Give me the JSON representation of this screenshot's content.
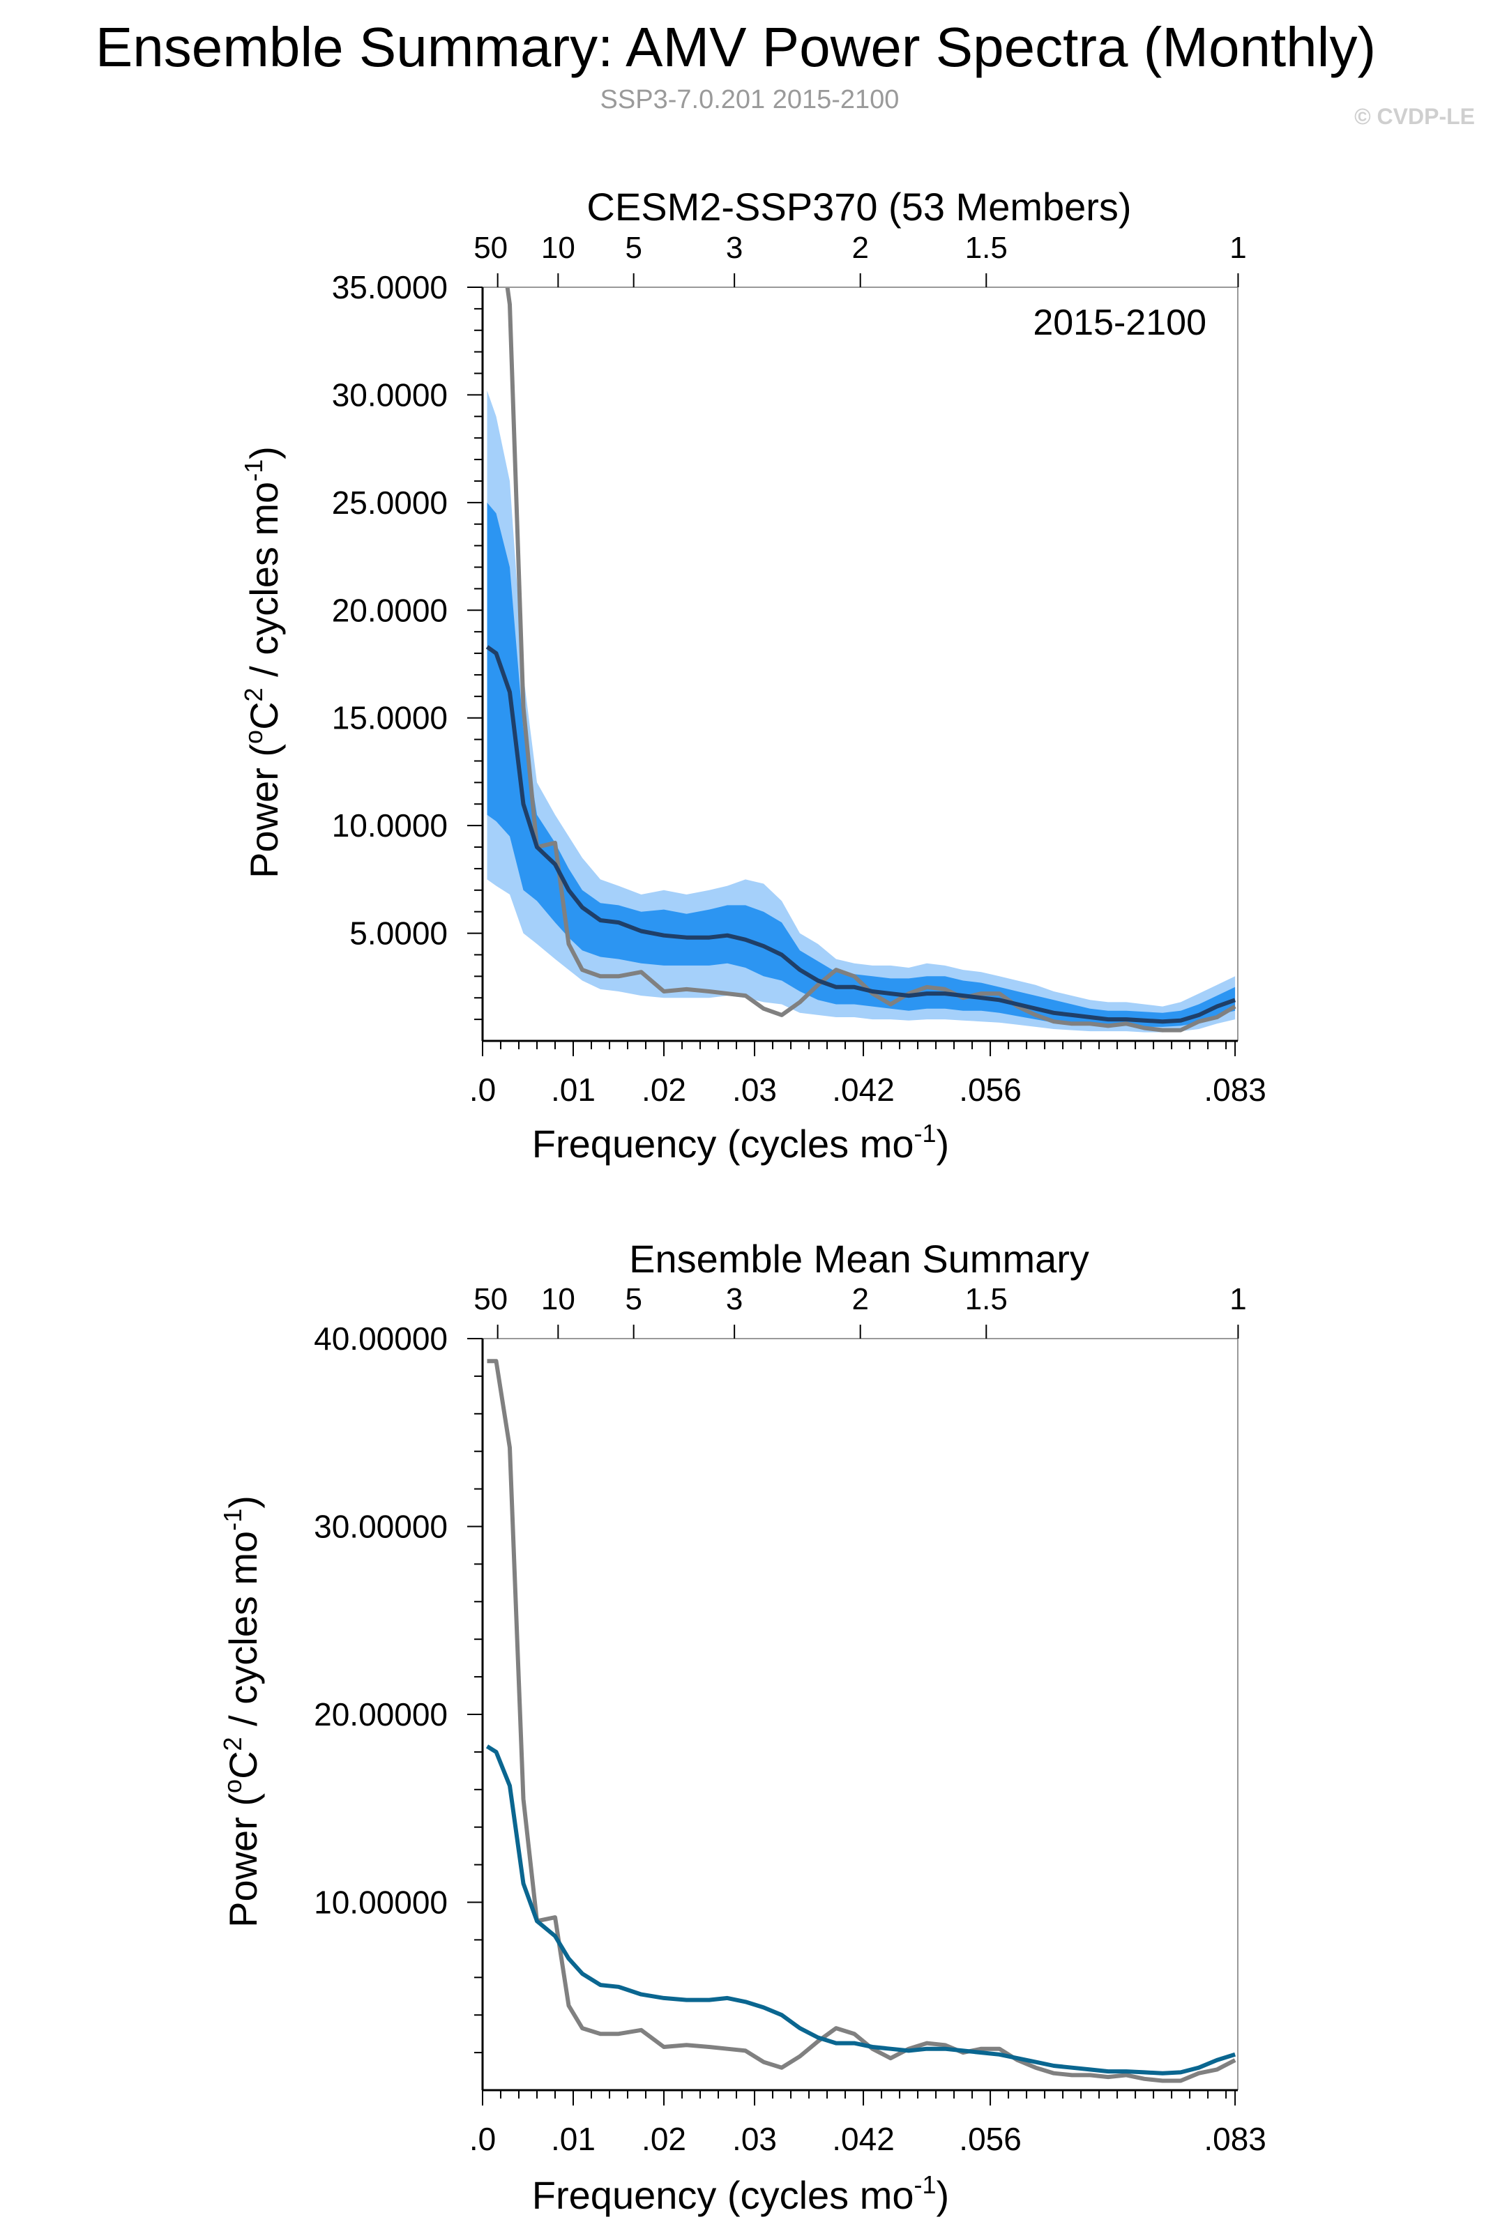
{
  "title": "Ensemble Summary: AMV Power Spectra (Monthly)",
  "subtitle": "SSP3-7.0.201 2015-2100",
  "copyright": "© CVDP-LE",
  "colors": {
    "model": "#0a6690",
    "model_dark": "#1f3f68",
    "obs": "#808080",
    "band_outer": "#a5d0fa",
    "band_inner": "#2c95f2",
    "axis": "#000000",
    "frame": "#999999"
  },
  "chart_data": [
    {
      "type": "line",
      "title": "CESM2-SSP370 (53 Members)",
      "annotation": "2015-2100",
      "xlabel": "Frequency (cycles mo⁻¹)",
      "ylabel": "Power (°C² / cycles mo⁻¹)",
      "xlim": [
        0,
        0.0833
      ],
      "ylim": [
        0,
        35
      ],
      "x_ticks": [
        0.0,
        0.01,
        0.02,
        0.03,
        0.042,
        0.056,
        0.083
      ],
      "x_tick_labels": [
        ".0",
        ".01",
        ".02",
        ".03",
        ".042",
        ".056",
        ".083"
      ],
      "y_ticks": [
        5,
        10,
        15,
        20,
        25,
        30,
        35
      ],
      "y_tick_labels": [
        "5.0000",
        "10.0000",
        "15.0000",
        "20.0000",
        "25.0000",
        "30.0000",
        "35.0000"
      ],
      "top_axis_labels": [
        "50",
        "10",
        "5",
        "3",
        "2",
        "1.5",
        "1"
      ],
      "top_axis_periods_years": [
        50,
        10,
        5,
        3,
        2,
        1.5,
        1
      ],
      "grid": false,
      "x": [
        0.0005,
        0.0015,
        0.003,
        0.0045,
        0.006,
        0.008,
        0.0095,
        0.011,
        0.013,
        0.015,
        0.0175,
        0.02,
        0.0225,
        0.025,
        0.027,
        0.029,
        0.031,
        0.033,
        0.035,
        0.037,
        0.039,
        0.041,
        0.043,
        0.045,
        0.047,
        0.049,
        0.051,
        0.053,
        0.055,
        0.057,
        0.059,
        0.061,
        0.063,
        0.065,
        0.067,
        0.069,
        0.071,
        0.073,
        0.075,
        0.077,
        0.079,
        0.081,
        0.083
      ],
      "series": [
        {
          "role": "ensemble-mean",
          "values": [
            18.3,
            18.0,
            16.2,
            11.0,
            9.0,
            8.2,
            7.0,
            6.2,
            5.6,
            5.5,
            5.1,
            4.9,
            4.8,
            4.8,
            4.9,
            4.7,
            4.4,
            4.0,
            3.3,
            2.8,
            2.5,
            2.5,
            2.3,
            2.2,
            2.1,
            2.2,
            2.2,
            2.1,
            2.0,
            1.9,
            1.7,
            1.5,
            1.3,
            1.2,
            1.1,
            1.0,
            1.0,
            0.95,
            0.9,
            0.95,
            1.2,
            1.6,
            1.9
          ]
        },
        {
          "role": "observations",
          "values": [
            null,
            38.8,
            34.2,
            15.5,
            9.0,
            9.2,
            4.5,
            3.3,
            3.0,
            3.0,
            3.2,
            2.3,
            2.4,
            2.3,
            2.2,
            2.1,
            1.5,
            1.2,
            1.8,
            2.6,
            3.3,
            3.0,
            2.2,
            1.7,
            2.2,
            2.5,
            2.4,
            2.0,
            2.2,
            2.2,
            1.6,
            1.2,
            0.9,
            0.8,
            0.8,
            0.7,
            0.8,
            0.6,
            0.5,
            0.5,
            0.9,
            1.1,
            1.6
          ]
        }
      ],
      "band_outer": {
        "upper": [
          30.2,
          29.0,
          26.0,
          17.0,
          12.0,
          10.5,
          9.5,
          8.5,
          7.5,
          7.2,
          6.8,
          7.0,
          6.8,
          7.0,
          7.2,
          7.5,
          7.3,
          6.5,
          5.0,
          4.5,
          3.8,
          3.6,
          3.5,
          3.5,
          3.4,
          3.6,
          3.5,
          3.3,
          3.2,
          3.0,
          2.8,
          2.6,
          2.3,
          2.1,
          1.9,
          1.8,
          1.8,
          1.7,
          1.6,
          1.8,
          2.2,
          2.6,
          3.0
        ],
        "lower": [
          7.5,
          7.2,
          6.8,
          5.0,
          4.5,
          3.8,
          3.3,
          2.8,
          2.4,
          2.3,
          2.1,
          2.0,
          2.0,
          2.0,
          2.1,
          2.0,
          1.8,
          1.7,
          1.3,
          1.2,
          1.1,
          1.1,
          1.0,
          1.0,
          0.95,
          1.0,
          1.0,
          0.95,
          0.9,
          0.85,
          0.75,
          0.65,
          0.55,
          0.5,
          0.45,
          0.45,
          0.45,
          0.4,
          0.4,
          0.45,
          0.55,
          0.8,
          1.0
        ]
      },
      "band_inner": {
        "upper": [
          25.0,
          24.5,
          22.0,
          14.5,
          10.5,
          9.2,
          8.0,
          7.0,
          6.4,
          6.3,
          6.0,
          6.1,
          5.9,
          6.1,
          6.3,
          6.3,
          6.0,
          5.5,
          4.2,
          3.7,
          3.2,
          3.1,
          3.0,
          2.9,
          2.9,
          3.0,
          3.0,
          2.8,
          2.7,
          2.5,
          2.3,
          2.1,
          1.9,
          1.7,
          1.5,
          1.4,
          1.4,
          1.35,
          1.3,
          1.4,
          1.7,
          2.1,
          2.5
        ],
        "lower": [
          10.5,
          10.2,
          9.5,
          7.0,
          6.5,
          5.5,
          4.8,
          4.2,
          3.9,
          3.8,
          3.6,
          3.5,
          3.5,
          3.5,
          3.6,
          3.4,
          3.0,
          2.8,
          2.3,
          1.9,
          1.7,
          1.7,
          1.6,
          1.5,
          1.4,
          1.5,
          1.5,
          1.4,
          1.4,
          1.3,
          1.15,
          1.0,
          0.85,
          0.8,
          0.75,
          0.7,
          0.7,
          0.65,
          0.65,
          0.7,
          0.85,
          1.2,
          1.4
        ]
      }
    },
    {
      "type": "line",
      "title": "Ensemble Mean Summary",
      "xlabel": "Frequency (cycles mo⁻¹)",
      "ylabel": "Power (°C² / cycles mo⁻¹)",
      "xlim": [
        0,
        0.0833
      ],
      "ylim": [
        0,
        40
      ],
      "x_ticks": [
        0.0,
        0.01,
        0.02,
        0.03,
        0.042,
        0.056,
        0.083
      ],
      "x_tick_labels": [
        ".0",
        ".01",
        ".02",
        ".03",
        ".042",
        ".056",
        ".083"
      ],
      "y_ticks": [
        10,
        20,
        30,
        40
      ],
      "y_tick_labels": [
        "10.00000",
        "20.00000",
        "30.00000",
        "40.00000"
      ],
      "top_axis_labels": [
        "50",
        "10",
        "5",
        "3",
        "2",
        "1.5",
        "1"
      ],
      "top_axis_periods_years": [
        50,
        10,
        5,
        3,
        2,
        1.5,
        1
      ],
      "grid": false,
      "x": [
        0.0005,
        0.0015,
        0.003,
        0.0045,
        0.006,
        0.008,
        0.0095,
        0.011,
        0.013,
        0.015,
        0.0175,
        0.02,
        0.0225,
        0.025,
        0.027,
        0.029,
        0.031,
        0.033,
        0.035,
        0.037,
        0.039,
        0.041,
        0.043,
        0.045,
        0.047,
        0.049,
        0.051,
        0.053,
        0.055,
        0.057,
        0.059,
        0.061,
        0.063,
        0.065,
        0.067,
        0.069,
        0.071,
        0.073,
        0.075,
        0.077,
        0.079,
        0.081,
        0.083
      ],
      "series": [
        {
          "role": "ensemble-mean",
          "values": [
            18.3,
            18.0,
            16.2,
            11.0,
            9.0,
            8.2,
            7.0,
            6.2,
            5.6,
            5.5,
            5.1,
            4.9,
            4.8,
            4.8,
            4.9,
            4.7,
            4.4,
            4.0,
            3.3,
            2.8,
            2.5,
            2.5,
            2.3,
            2.2,
            2.1,
            2.2,
            2.2,
            2.1,
            2.0,
            1.9,
            1.7,
            1.5,
            1.3,
            1.2,
            1.1,
            1.0,
            1.0,
            0.95,
            0.9,
            0.95,
            1.2,
            1.6,
            1.9
          ]
        },
        {
          "role": "observations",
          "values": [
            38.8,
            38.8,
            34.2,
            15.5,
            9.0,
            9.2,
            4.5,
            3.3,
            3.0,
            3.0,
            3.2,
            2.3,
            2.4,
            2.3,
            2.2,
            2.1,
            1.5,
            1.2,
            1.8,
            2.6,
            3.3,
            3.0,
            2.2,
            1.7,
            2.2,
            2.5,
            2.4,
            2.0,
            2.2,
            2.2,
            1.6,
            1.2,
            0.9,
            0.8,
            0.8,
            0.7,
            0.8,
            0.6,
            0.5,
            0.5,
            0.9,
            1.1,
            1.6
          ]
        }
      ]
    }
  ]
}
